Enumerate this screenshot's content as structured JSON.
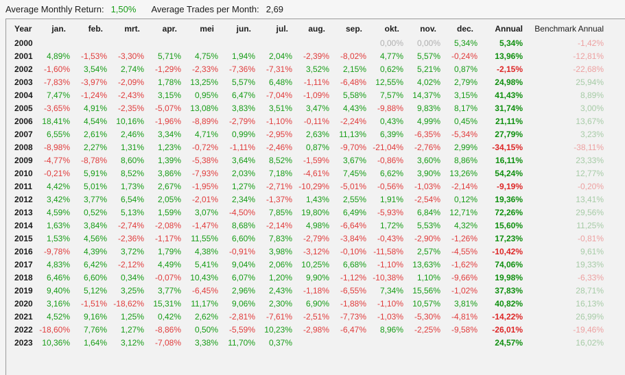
{
  "topbar": {
    "avg_monthly_return_label": "Average Monthly Return:",
    "avg_monthly_return_value": "1,50%",
    "avg_trades_label": "Average Trades per Month:",
    "avg_trades_value": "2,69"
  },
  "colors": {
    "positive": "#169c16",
    "negative": "#e03c3c",
    "zero": "#b0b0b0",
    "annual_positive": "#0e8f0e",
    "annual_negative": "#dd2525",
    "benchmark_positive": "#a6cba6",
    "benchmark_negative": "#eda0a0"
  },
  "table": {
    "columns": [
      "Year",
      "jan.",
      "feb.",
      "mrt.",
      "apr.",
      "mei",
      "jun.",
      "jul.",
      "aug.",
      "sep.",
      "okt.",
      "nov.",
      "dec.",
      "Annual",
      "Benchmark Annual"
    ],
    "rows": [
      {
        "year": "2000",
        "months": [
          "",
          "",
          "",
          "",
          "",
          "",
          "",
          "",
          "",
          "0,00%",
          "0,00%",
          "5,34%"
        ],
        "annual": "5,34%",
        "benchmark": "-1,42%"
      },
      {
        "year": "2001",
        "months": [
          "4,89%",
          "-1,53%",
          "-3,30%",
          "5,71%",
          "4,75%",
          "1,94%",
          "2,04%",
          "-2,39%",
          "-8,02%",
          "4,77%",
          "5,57%",
          "-0,24%"
        ],
        "annual": "13,96%",
        "benchmark": "-12,81%"
      },
      {
        "year": "2002",
        "months": [
          "-1,60%",
          "3,54%",
          "2,74%",
          "-1,29%",
          "-2,33%",
          "-7,36%",
          "-7,31%",
          "3,52%",
          "2,15%",
          "0,62%",
          "5,21%",
          "0,87%"
        ],
        "annual": "-2,15%",
        "benchmark": "-22,68%"
      },
      {
        "year": "2003",
        "months": [
          "-7,83%",
          "-3,97%",
          "-2,09%",
          "1,78%",
          "13,25%",
          "5,57%",
          "6,48%",
          "-1,11%",
          "-6,48%",
          "12,55%",
          "4,02%",
          "2,79%"
        ],
        "annual": "24,98%",
        "benchmark": "25,94%"
      },
      {
        "year": "2004",
        "months": [
          "7,47%",
          "-1,24%",
          "-2,43%",
          "3,15%",
          "0,95%",
          "6,47%",
          "-7,04%",
          "-1,09%",
          "5,58%",
          "7,57%",
          "14,37%",
          "3,15%"
        ],
        "annual": "41,43%",
        "benchmark": "8,89%"
      },
      {
        "year": "2005",
        "months": [
          "-3,65%",
          "4,91%",
          "-2,35%",
          "-5,07%",
          "13,08%",
          "3,83%",
          "3,51%",
          "3,47%",
          "4,43%",
          "-9,88%",
          "9,83%",
          "8,17%"
        ],
        "annual": "31,74%",
        "benchmark": "3,00%"
      },
      {
        "year": "2006",
        "months": [
          "18,41%",
          "4,54%",
          "10,16%",
          "-1,96%",
          "-8,89%",
          "-2,79%",
          "-1,10%",
          "-0,11%",
          "-2,24%",
          "0,43%",
          "4,99%",
          "0,45%"
        ],
        "annual": "21,11%",
        "benchmark": "13,67%"
      },
      {
        "year": "2007",
        "months": [
          "6,55%",
          "2,61%",
          "2,46%",
          "3,34%",
          "4,71%",
          "0,99%",
          "-2,95%",
          "2,63%",
          "11,13%",
          "6,39%",
          "-6,35%",
          "-5,34%"
        ],
        "annual": "27,79%",
        "benchmark": "3,23%"
      },
      {
        "year": "2008",
        "months": [
          "-8,98%",
          "2,27%",
          "1,31%",
          "1,23%",
          "-0,72%",
          "-1,11%",
          "-2,46%",
          "0,87%",
          "-9,70%",
          "-21,04%",
          "-2,76%",
          "2,99%"
        ],
        "annual": "-34,15%",
        "benchmark": "-38,11%"
      },
      {
        "year": "2009",
        "months": [
          "-4,77%",
          "-8,78%",
          "8,60%",
          "1,39%",
          "-5,38%",
          "3,64%",
          "8,52%",
          "-1,59%",
          "3,67%",
          "-0,86%",
          "3,60%",
          "8,86%"
        ],
        "annual": "16,11%",
        "benchmark": "23,33%"
      },
      {
        "year": "2010",
        "months": [
          "-0,21%",
          "5,91%",
          "8,52%",
          "3,86%",
          "-7,93%",
          "2,03%",
          "7,18%",
          "-4,61%",
          "7,45%",
          "6,62%",
          "3,90%",
          "13,26%"
        ],
        "annual": "54,24%",
        "benchmark": "12,77%"
      },
      {
        "year": "2011",
        "months": [
          "4,42%",
          "5,01%",
          "1,73%",
          "2,67%",
          "-1,95%",
          "1,27%",
          "-2,71%",
          "-10,29%",
          "-5,01%",
          "-0,56%",
          "-1,03%",
          "-2,14%"
        ],
        "annual": "-9,19%",
        "benchmark": "-0,20%"
      },
      {
        "year": "2012",
        "months": [
          "3,42%",
          "3,77%",
          "6,54%",
          "2,05%",
          "-2,01%",
          "2,34%",
          "-1,37%",
          "1,43%",
          "2,55%",
          "1,91%",
          "-2,54%",
          "0,12%"
        ],
        "annual": "19,36%",
        "benchmark": "13,41%"
      },
      {
        "year": "2013",
        "months": [
          "4,59%",
          "0,52%",
          "5,13%",
          "1,59%",
          "3,07%",
          "-4,50%",
          "7,85%",
          "19,80%",
          "6,49%",
          "-5,93%",
          "6,84%",
          "12,71%"
        ],
        "annual": "72,26%",
        "benchmark": "29,56%"
      },
      {
        "year": "2014",
        "months": [
          "1,63%",
          "3,84%",
          "-2,74%",
          "-2,08%",
          "-1,47%",
          "8,68%",
          "-2,14%",
          "4,98%",
          "-6,64%",
          "1,72%",
          "5,53%",
          "4,32%"
        ],
        "annual": "15,60%",
        "benchmark": "11,25%"
      },
      {
        "year": "2015",
        "months": [
          "1,53%",
          "4,56%",
          "-2,36%",
          "-1,17%",
          "11,55%",
          "6,60%",
          "7,83%",
          "-2,79%",
          "-3,84%",
          "-0,43%",
          "-2,90%",
          "-1,26%"
        ],
        "annual": "17,23%",
        "benchmark": "-0,81%"
      },
      {
        "year": "2016",
        "months": [
          "-9,78%",
          "4,39%",
          "3,72%",
          "1,79%",
          "4,38%",
          "-0,91%",
          "3,98%",
          "-3,12%",
          "-0,10%",
          "-11,58%",
          "2,57%",
          "-4,55%"
        ],
        "annual": "-10,42%",
        "benchmark": "9,61%"
      },
      {
        "year": "2017",
        "months": [
          "4,83%",
          "6,42%",
          "-2,12%",
          "4,49%",
          "5,41%",
          "9,04%",
          "2,06%",
          "10,25%",
          "6,68%",
          "-1,10%",
          "13,63%",
          "-1,62%"
        ],
        "annual": "74,06%",
        "benchmark": "19,33%"
      },
      {
        "year": "2018",
        "months": [
          "6,46%",
          "6,60%",
          "0,34%",
          "-0,07%",
          "10,43%",
          "6,07%",
          "1,20%",
          "9,90%",
          "-1,12%",
          "-10,38%",
          "1,10%",
          "-9,66%"
        ],
        "annual": "19,98%",
        "benchmark": "-6,33%"
      },
      {
        "year": "2019",
        "months": [
          "9,40%",
          "5,12%",
          "3,25%",
          "3,77%",
          "-6,45%",
          "2,96%",
          "2,43%",
          "-1,18%",
          "-6,55%",
          "7,34%",
          "15,56%",
          "-1,02%"
        ],
        "annual": "37,83%",
        "benchmark": "28,71%"
      },
      {
        "year": "2020",
        "months": [
          "3,16%",
          "-1,51%",
          "-18,62%",
          "15,31%",
          "11,17%",
          "9,06%",
          "2,30%",
          "6,90%",
          "-1,88%",
          "-1,10%",
          "10,57%",
          "3,81%"
        ],
        "annual": "40,82%",
        "benchmark": "16,13%"
      },
      {
        "year": "2021",
        "months": [
          "4,52%",
          "9,16%",
          "1,25%",
          "0,42%",
          "2,62%",
          "-2,81%",
          "-7,61%",
          "-2,51%",
          "-7,73%",
          "-1,03%",
          "-5,30%",
          "-4,81%"
        ],
        "annual": "-14,22%",
        "benchmark": "26,99%"
      },
      {
        "year": "2022",
        "months": [
          "-18,60%",
          "7,76%",
          "1,27%",
          "-8,86%",
          "0,50%",
          "-5,59%",
          "10,23%",
          "-2,98%",
          "-6,47%",
          "8,96%",
          "-2,25%",
          "-9,58%"
        ],
        "annual": "-26,01%",
        "benchmark": "-19,46%"
      },
      {
        "year": "2023",
        "months": [
          "10,36%",
          "1,64%",
          "3,12%",
          "-7,08%",
          "3,38%",
          "11,70%",
          "0,37%",
          "",
          "",
          "",
          "",
          ""
        ],
        "annual": "24,57%",
        "benchmark": "16,02%"
      }
    ]
  }
}
